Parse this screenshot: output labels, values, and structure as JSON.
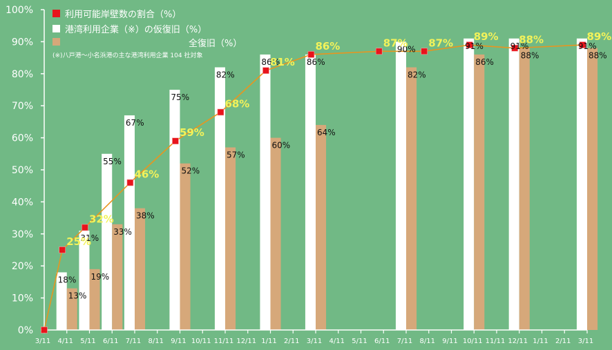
{
  "chart_data": {
    "type": "bar",
    "x_ticks": [
      "3/11",
      "4/11",
      "5/11",
      "6/11",
      "7/11",
      "8/11",
      "9/11",
      "10/11",
      "11/11",
      "12/11",
      "1/11",
      "2/11",
      "3/11",
      "4/11",
      "5/11",
      "6/11",
      "7/11",
      "8/11",
      "9/11",
      "10/11",
      "11/11",
      "12/11",
      "1/11",
      "2/11",
      "3/11"
    ],
    "y_ticks": [
      "0%",
      "10%",
      "20%",
      "30%",
      "40%",
      "50%",
      "60%",
      "70%",
      "80%",
      "90%",
      "100%"
    ],
    "ylim": [
      0,
      100
    ],
    "legend": {
      "line": "利用可能岸壁数の割合（%）",
      "partial": "港湾利用企業（※）の仮復旧（%）",
      "note": "(※)八戸港〜小名浜港の主な港湾利用企業 104 社対象",
      "full": "全復旧（%）"
    },
    "series": [
      {
        "name": "利用可能岸壁数の割合（%）",
        "type": "line",
        "points": [
          {
            "x": 0,
            "y": 0,
            "label": ""
          },
          {
            "x": 0.8,
            "y": 25,
            "label": "25%"
          },
          {
            "x": 1.8,
            "y": 32,
            "label": "32%"
          },
          {
            "x": 3.8,
            "y": 46,
            "label": "46%"
          },
          {
            "x": 5.8,
            "y": 59,
            "label": "59%"
          },
          {
            "x": 7.8,
            "y": 68,
            "label": "68%"
          },
          {
            "x": 9.8,
            "y": 81,
            "label": "81%"
          },
          {
            "x": 11.8,
            "y": 86,
            "label": "86%"
          },
          {
            "x": 14.8,
            "y": 87,
            "label": "87%"
          },
          {
            "x": 16.8,
            "y": 87,
            "label": "87%"
          },
          {
            "x": 18.8,
            "y": 89,
            "label": "89%"
          },
          {
            "x": 20.8,
            "y": 88,
            "label": "88%"
          },
          {
            "x": 23.8,
            "y": 89,
            "label": "89%"
          }
        ]
      },
      {
        "name": "港湾利用企業（※）の仮復旧（%）",
        "type": "bar",
        "points": [
          {
            "x": 1,
            "y": 18,
            "label": "18%"
          },
          {
            "x": 2,
            "y": 31,
            "label": "31%"
          },
          {
            "x": 3,
            "y": 55,
            "label": "55%"
          },
          {
            "x": 4,
            "y": 67,
            "label": "67%"
          },
          {
            "x": 6,
            "y": 75,
            "label": "75%"
          },
          {
            "x": 8,
            "y": 82,
            "label": "82%"
          },
          {
            "x": 10,
            "y": 86,
            "label": "86%"
          },
          {
            "x": 12,
            "y": 86,
            "label": "86%"
          },
          {
            "x": 16,
            "y": 90,
            "label": "90%"
          },
          {
            "x": 19,
            "y": 91,
            "label": "91%"
          },
          {
            "x": 21,
            "y": 91,
            "label": "91%"
          },
          {
            "x": 24,
            "y": 91,
            "label": "91%"
          }
        ]
      },
      {
        "name": "全復旧（%）",
        "type": "bar",
        "points": [
          {
            "x": 1,
            "y": 13,
            "label": "13%"
          },
          {
            "x": 2,
            "y": 19,
            "label": "19%"
          },
          {
            "x": 3,
            "y": 33,
            "label": "33%"
          },
          {
            "x": 4,
            "y": 38,
            "label": "38%"
          },
          {
            "x": 6,
            "y": 52,
            "label": "52%"
          },
          {
            "x": 8,
            "y": 57,
            "label": "57%"
          },
          {
            "x": 10,
            "y": 60,
            "label": "60%"
          },
          {
            "x": 12,
            "y": 64,
            "label": "64%"
          },
          {
            "x": 16,
            "y": 82,
            "label": "82%"
          },
          {
            "x": 19,
            "y": 86,
            "label": "86%"
          },
          {
            "x": 21,
            "y": 88,
            "label": "88%"
          },
          {
            "x": 24,
            "y": 88,
            "label": "88%"
          }
        ]
      }
    ],
    "colors": {
      "background": "#71b985",
      "partial_bar": "#ffffff",
      "full_bar": "#d6a87a",
      "line": "#e8951f",
      "marker": "#e8141c",
      "line_label": "#f2f25a"
    }
  }
}
